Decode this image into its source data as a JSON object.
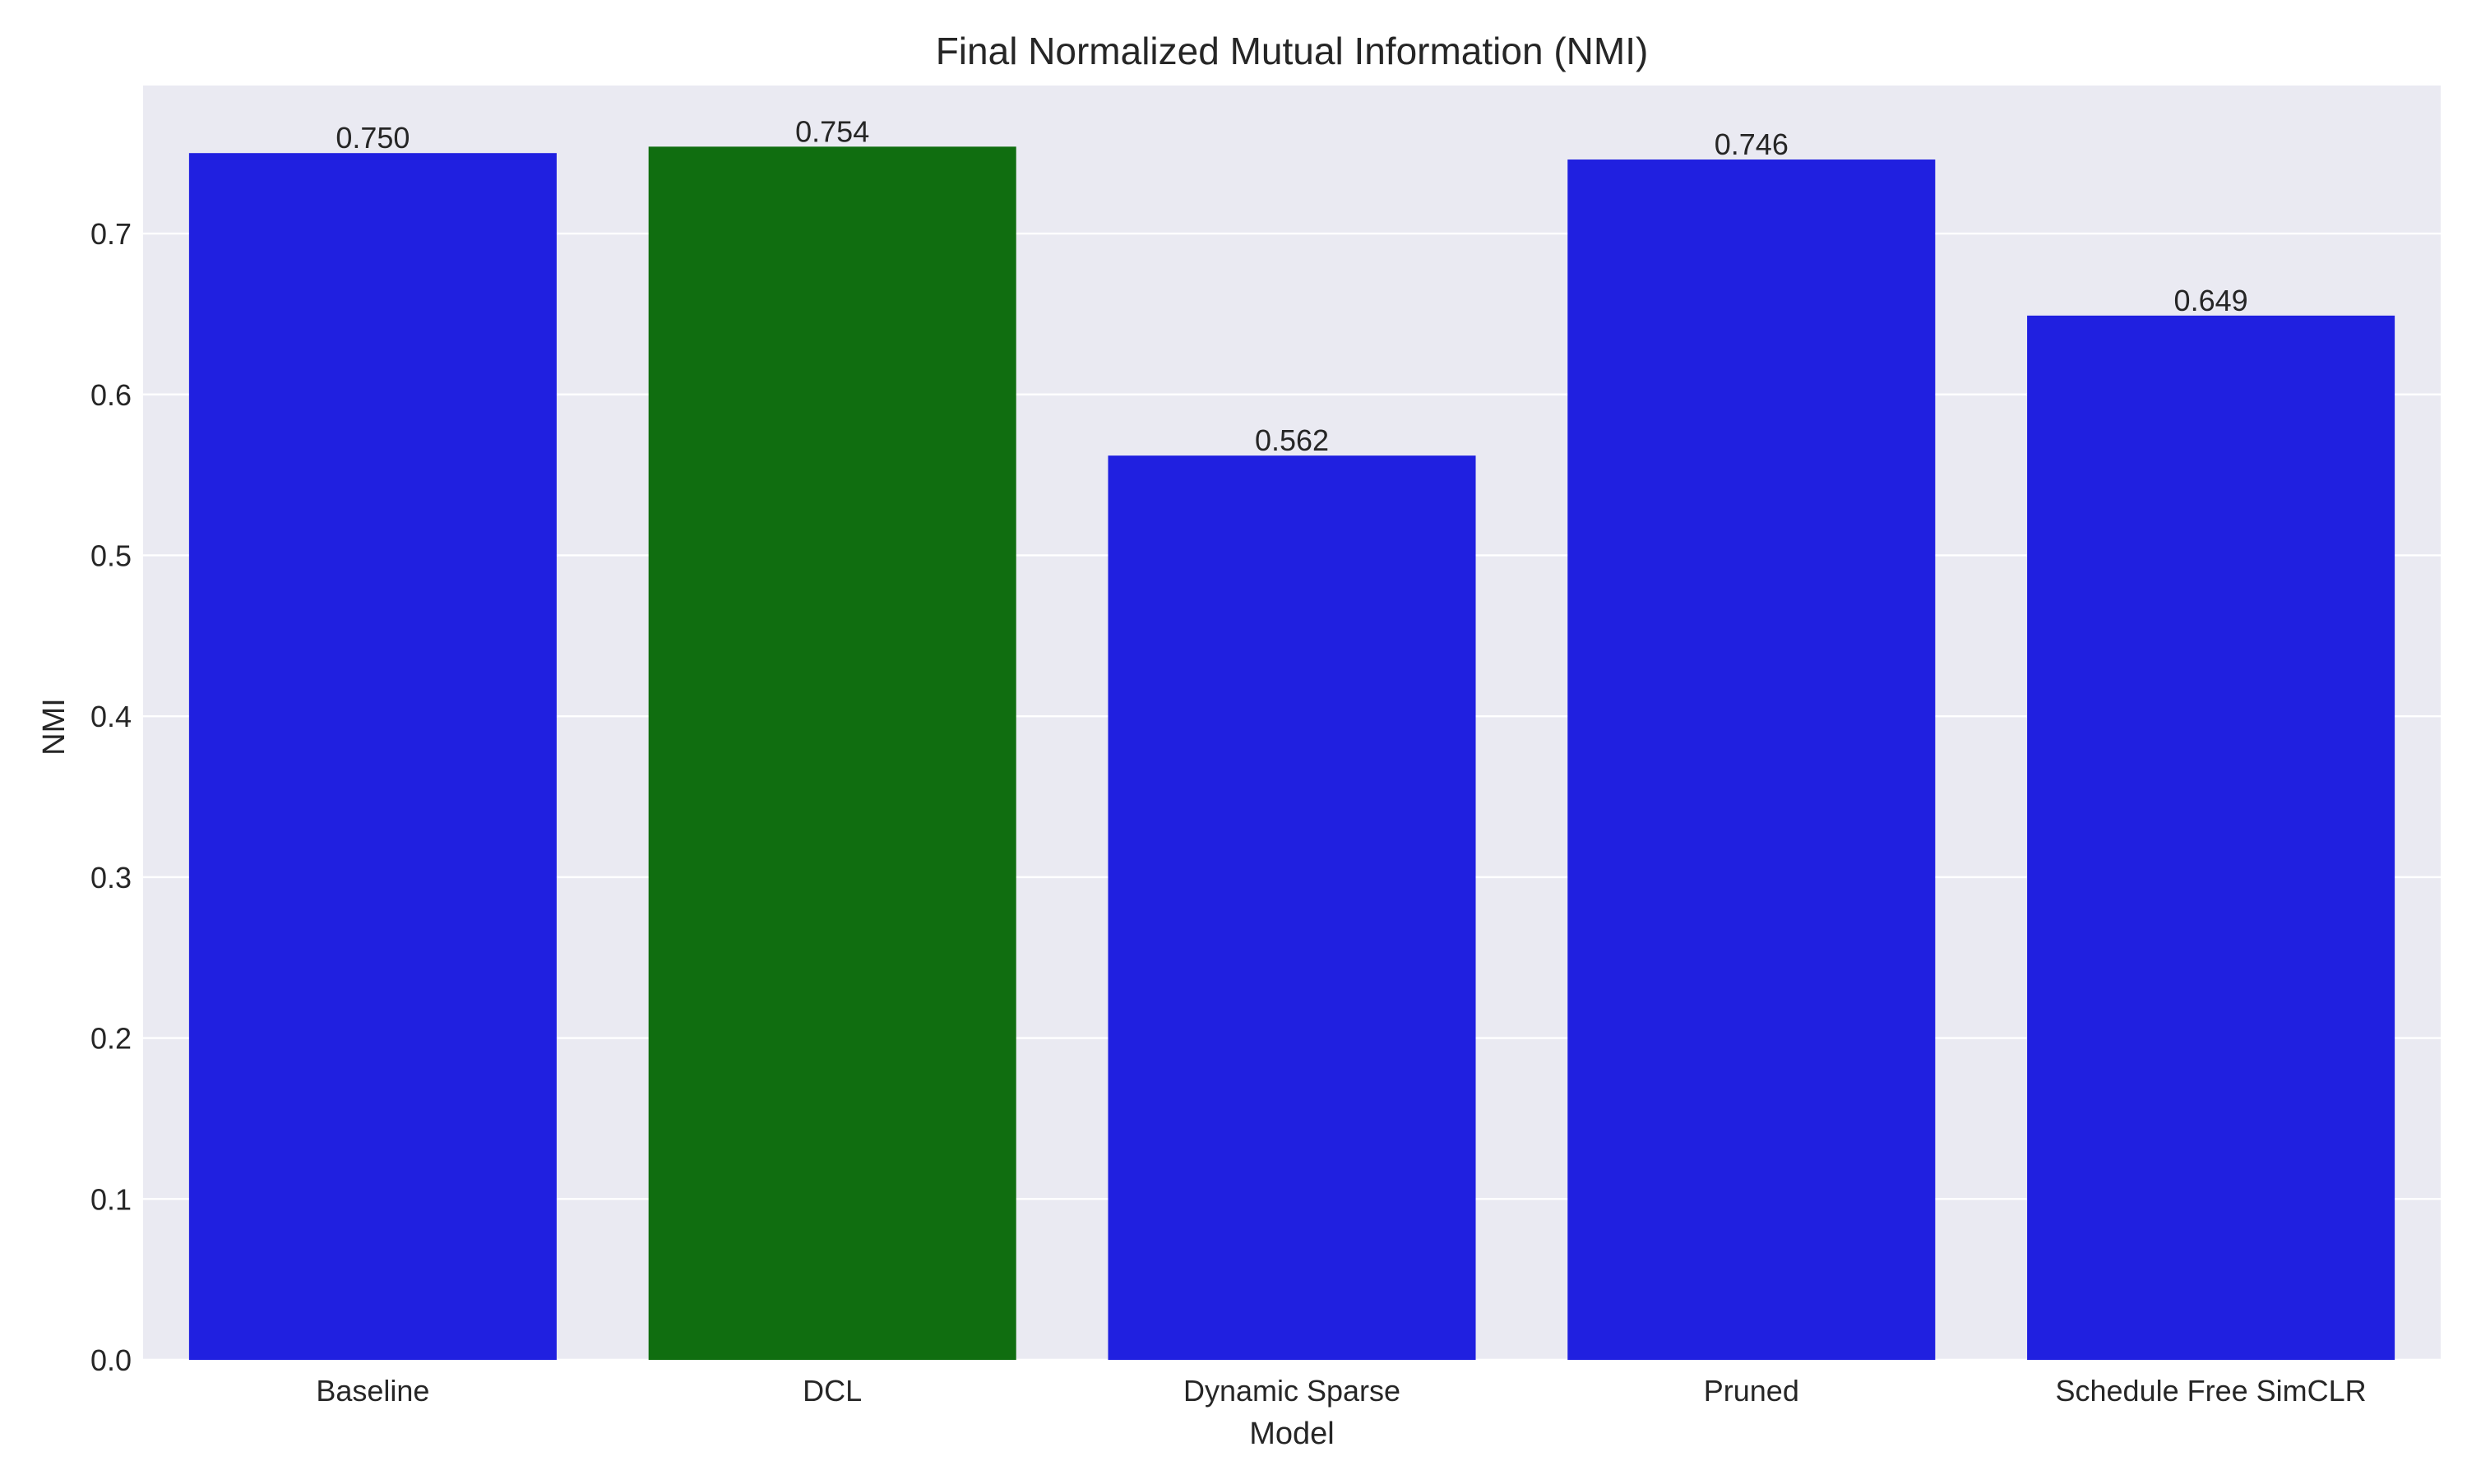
{
  "chart_data": {
    "type": "bar",
    "title": "Final Normalized Mutual Information (NMI)",
    "xlabel": "Model",
    "ylabel": "NMI",
    "categories": [
      "Baseline",
      "DCL",
      "Dynamic Sparse",
      "Pruned",
      "Schedule Free SimCLR"
    ],
    "values": [
      0.75,
      0.754,
      0.562,
      0.746,
      0.649
    ],
    "value_labels": [
      "0.750",
      "0.754",
      "0.562",
      "0.746",
      "0.649"
    ],
    "bar_colors": [
      "#2020e0",
      "#106e10",
      "#2020e0",
      "#2020e0",
      "#2020e0"
    ],
    "ylim": [
      0,
      0.792
    ],
    "yticks": [
      0.0,
      0.1,
      0.2,
      0.3,
      0.4,
      0.5,
      0.6,
      0.7
    ],
    "ytick_labels": [
      "0.0",
      "0.1",
      "0.2",
      "0.3",
      "0.4",
      "0.5",
      "0.6",
      "0.7"
    ],
    "grid": true,
    "plot_background": "#eaeaf2",
    "grid_color": "#ffffff"
  }
}
